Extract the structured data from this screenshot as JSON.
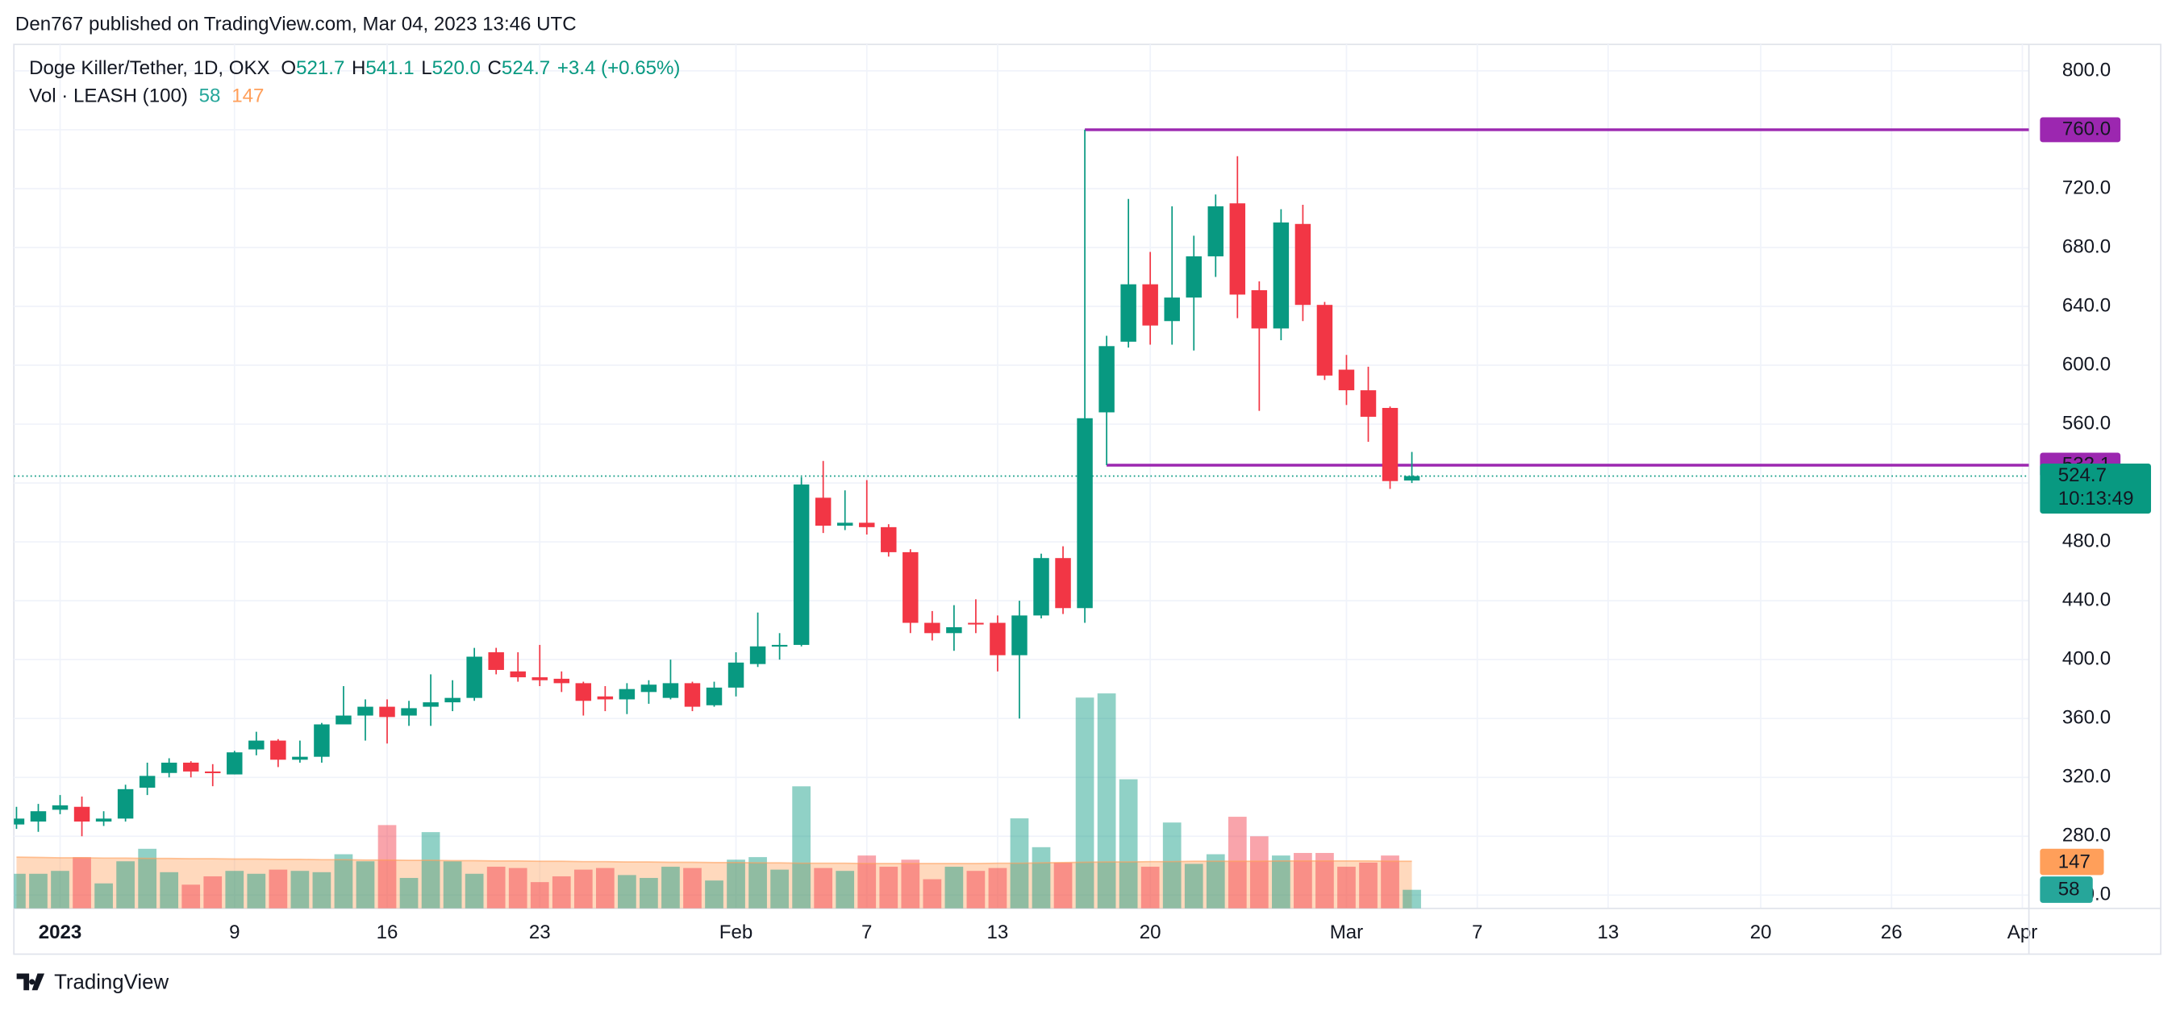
{
  "header": {
    "publisher": "Den767 published on TradingView.com, Mar 04, 2023 13:46 UTC"
  },
  "footer": {
    "brand": "TradingView"
  },
  "chart_data": {
    "type": "candlestick",
    "legend": {
      "symbol": "Doge Killer/Tether, 1D, OKX",
      "fields": [
        {
          "key": "O",
          "value": "521.7"
        },
        {
          "key": "H",
          "value": "541.1"
        },
        {
          "key": "L",
          "value": "520.0"
        },
        {
          "key": "C",
          "value": "524.7"
        }
      ],
      "change": "+3.4 (+0.65%)",
      "volume_title": "Vol · LEASH (100)"
    },
    "up_color": "#089981",
    "down_color": "#f23645",
    "x": [
      -1,
      0,
      1,
      2,
      3,
      4,
      5,
      6,
      7,
      8,
      9,
      10,
      11,
      12,
      13,
      14,
      15,
      16,
      17,
      18,
      19,
      20,
      21,
      22,
      23,
      24,
      25,
      26,
      27,
      28,
      29,
      30,
      31,
      32,
      33,
      34,
      35,
      36,
      37,
      38,
      39,
      40,
      41,
      42,
      43,
      44,
      45,
      46,
      47,
      48,
      49,
      50,
      51,
      52,
      53,
      54,
      55,
      56,
      57,
      58,
      59,
      60,
      61,
      62,
      63
    ],
    "open": [
      288,
      290,
      298,
      300,
      290,
      292,
      313,
      323,
      330,
      324,
      322,
      339,
      345,
      332,
      334,
      356,
      362,
      368,
      362,
      368,
      371,
      374,
      405,
      392,
      388,
      387,
      384,
      375,
      373,
      378,
      374,
      384,
      369,
      381,
      397,
      409,
      410,
      510,
      491,
      493,
      490,
      473,
      425,
      418,
      425,
      425,
      403,
      430,
      469,
      435,
      568,
      616,
      655,
      630,
      646,
      674,
      710,
      651,
      625,
      696,
      641,
      597,
      583,
      571,
      521.7
    ],
    "high": [
      300,
      302,
      308,
      307,
      297,
      315,
      330,
      333,
      331,
      329,
      338,
      351,
      346,
      345,
      357,
      382,
      373,
      373,
      372,
      390,
      386,
      408,
      408,
      405,
      410,
      392,
      385,
      382,
      384,
      386,
      400,
      385,
      385,
      405,
      432,
      418,
      524,
      535,
      515,
      522,
      492,
      475,
      433,
      437,
      441,
      430,
      440,
      472,
      477,
      760,
      620,
      713,
      677,
      708,
      688,
      716,
      742,
      657,
      706,
      709,
      643,
      607,
      599,
      572,
      541.1
    ],
    "low": [
      285,
      283,
      295,
      280,
      287,
      290,
      308,
      320,
      320,
      314,
      322,
      335,
      327,
      330,
      330,
      356,
      345,
      343,
      355,
      355,
      365,
      372,
      390,
      385,
      382,
      378,
      362,
      365,
      363,
      370,
      373,
      365,
      368,
      375,
      395,
      400,
      409,
      486,
      488,
      485,
      470,
      418,
      413,
      406,
      418,
      392,
      360,
      428,
      431,
      425,
      532.1,
      612,
      614,
      614,
      610,
      660,
      632,
      569,
      617,
      630,
      590,
      573,
      548,
      516,
      520
    ],
    "close": [
      292,
      297,
      301,
      290,
      292,
      312,
      321,
      330,
      324,
      323,
      337,
      345,
      332,
      334,
      356,
      362,
      368,
      361,
      367,
      371,
      374,
      402,
      393,
      388,
      386,
      384,
      372,
      373,
      380,
      383,
      384,
      368,
      381,
      398,
      409,
      410,
      519,
      491,
      493,
      490,
      473,
      425,
      418,
      422,
      424,
      403,
      430,
      469,
      435,
      564,
      613,
      655,
      627,
      646,
      674,
      708,
      648,
      625,
      697,
      641,
      593,
      583,
      565,
      521.3,
      524.7
    ],
    "volume": [
      108,
      108,
      117,
      160,
      78,
      147,
      186,
      113,
      74,
      100,
      117,
      108,
      121,
      117,
      113,
      169,
      147,
      260,
      95,
      238,
      147,
      108,
      130,
      126,
      82,
      100,
      121,
      126,
      104,
      95,
      130,
      126,
      87,
      152,
      160,
      121,
      381,
      126,
      117,
      165,
      130,
      152,
      91,
      130,
      117,
      126,
      281,
      191,
      143,
      658,
      671,
      403,
      130,
      268,
      139,
      169,
      286,
      225,
      165,
      173,
      173,
      130,
      143,
      165,
      58
    ],
    "volume_ma": [
      160,
      159,
      158,
      158,
      157,
      157,
      156,
      156,
      155,
      155,
      154,
      154,
      153,
      153,
      152,
      152,
      151,
      151,
      150,
      150,
      149,
      149,
      148,
      148,
      147,
      147,
      146,
      146,
      145,
      145,
      144,
      144,
      143,
      143,
      142,
      142,
      141,
      141,
      141,
      140,
      140,
      140,
      140,
      140,
      140,
      141,
      141,
      142,
      143,
      144,
      145,
      145,
      146,
      146,
      147,
      147,
      147,
      147,
      148,
      148,
      148,
      148,
      148,
      147,
      147
    ],
    "volume_ma_color": "#ff9f5a",
    "volume_last": {
      "value": 58,
      "label": "58"
    },
    "volume_ma_last": {
      "value": 147,
      "label": "147"
    },
    "last_price": {
      "value": 524.7,
      "label": "524.7",
      "countdown": "10:13:49"
    },
    "levels": [
      {
        "value": 760,
        "label": "760.0",
        "start_x": 48,
        "color": "#9c27b0"
      },
      {
        "value": 532.1,
        "label": "532.1",
        "start_x": 49,
        "color": "#9c27b0"
      }
    ],
    "xlim": [
      -1.12,
      91.3
    ],
    "ylim": [
      231,
      818
    ],
    "xticks": [
      {
        "value": 1,
        "label": "2023"
      },
      9,
      16,
      23,
      {
        "value": 32,
        "label": "Feb"
      },
      {
        "value": 38,
        "label": "7"
      },
      {
        "value": 44,
        "label": "13"
      },
      {
        "value": 51,
        "label": "20"
      },
      {
        "value": 60,
        "label": "Mar"
      },
      {
        "value": 66,
        "label": "7"
      },
      {
        "value": 72,
        "label": "13"
      },
      {
        "value": 79,
        "label": "20"
      },
      {
        "value": 85,
        "label": "26"
      },
      {
        "value": 91,
        "label": "Apr"
      }
    ],
    "yticks": [
      {
        "value": 240,
        "label": "240.0"
      },
      {
        "value": 280,
        "label": "280.0"
      },
      {
        "value": 320,
        "label": "320.0"
      },
      {
        "value": 360,
        "label": "360.0"
      },
      {
        "value": 400,
        "label": "400.0"
      },
      {
        "value": 440,
        "label": "440.0"
      },
      {
        "value": 480,
        "label": "480.0"
      },
      {
        "value": 520,
        "label": "520.0"
      },
      {
        "value": 560,
        "label": "560.0"
      },
      {
        "value": 600,
        "label": "600.0"
      },
      {
        "value": 640,
        "label": "640.0"
      },
      {
        "value": 680,
        "label": "680.0"
      },
      {
        "value": 720,
        "label": "720.0"
      },
      {
        "value": 760,
        "label": "760.0"
      },
      {
        "value": 800,
        "label": "800.0"
      }
    ],
    "grid": true
  }
}
